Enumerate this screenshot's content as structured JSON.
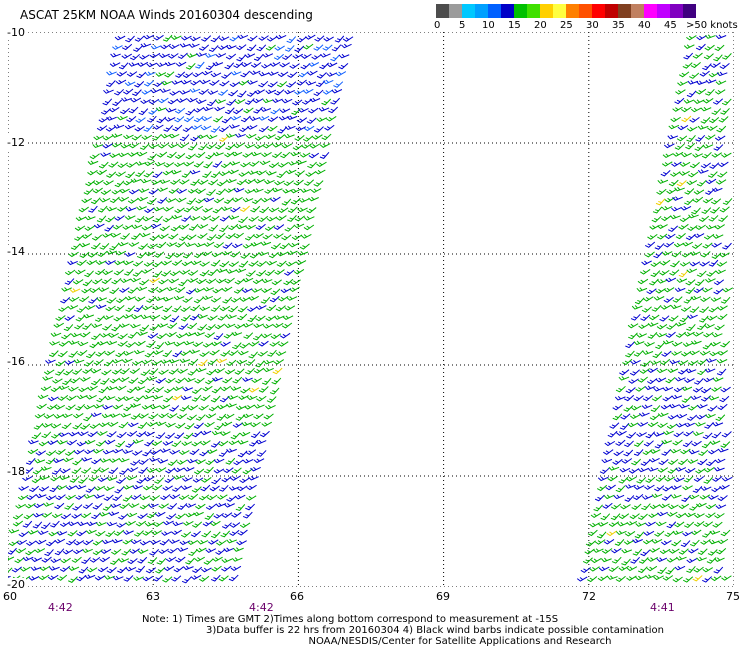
{
  "title": "ASCAT 25KM NOAA Winds 20160304 descending",
  "colorbar": {
    "colors": [
      "#4d4d4d",
      "#9b9b9b",
      "#00c8ff",
      "#00a0ff",
      "#0060ff",
      "#0000c8",
      "#00c000",
      "#40e000",
      "#ffd000",
      "#ffff40",
      "#ff8000",
      "#ff5000",
      "#ff0000",
      "#c00000",
      "#804020",
      "#c08060",
      "#ff00ff",
      "#c000ff",
      "#8000c0",
      "#400080"
    ],
    "labels": [
      "0",
      "5",
      "10",
      "15",
      "20",
      "25",
      "30",
      "35",
      "40",
      "45",
      ">50 knots"
    ]
  },
  "axes": {
    "lat_labels": [
      "-10",
      "-12",
      "-14",
      "-16",
      "-18",
      "-20"
    ],
    "lon_labels": [
      "60",
      "63",
      "66",
      "69",
      "72",
      "75"
    ],
    "time_labels": [
      "4:42",
      "4:42",
      "4:41"
    ]
  },
  "notes": [
    "Note: 1) Times are GMT 2)Times along bottom correspond to measurement at -15S",
    "3)Data buffer is 22 hrs from 20160304 4) Black wind barbs indicate possible contamination",
    "NOAA/NESDIS/Center for Satellite Applications and Research"
  ],
  "barb_colors": {
    "blue": "#0000d0",
    "mid_blue": "#1060ff",
    "green": "#00b000",
    "yellow": "#f0d000",
    "black": "#000000"
  }
}
